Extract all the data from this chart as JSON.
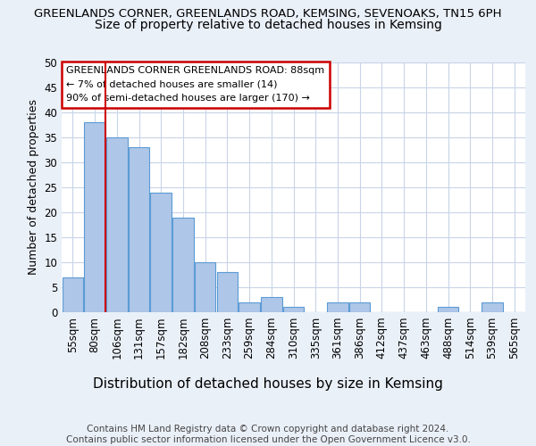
{
  "title_line1": "GREENLANDS CORNER, GREENLANDS ROAD, KEMSING, SEVENOAKS, TN15 6PH",
  "title_line2": "Size of property relative to detached houses in Kemsing",
  "xlabel": "Distribution of detached houses by size in Kemsing",
  "ylabel": "Number of detached properties",
  "categories": [
    "55sqm",
    "80sqm",
    "106sqm",
    "131sqm",
    "157sqm",
    "182sqm",
    "208sqm",
    "233sqm",
    "259sqm",
    "284sqm",
    "310sqm",
    "335sqm",
    "361sqm",
    "386sqm",
    "412sqm",
    "437sqm",
    "463sqm",
    "488sqm",
    "514sqm",
    "539sqm",
    "565sqm"
  ],
  "values": [
    7,
    38,
    35,
    33,
    24,
    19,
    10,
    8,
    2,
    3,
    1,
    0,
    2,
    2,
    0,
    0,
    0,
    1,
    0,
    2,
    0
  ],
  "bar_color": "#aec6e8",
  "bar_edge_color": "#5b9bd5",
  "vline_pos": 1.5,
  "vline_color": "#cc0000",
  "annotation_text": "GREENLANDS CORNER GREENLANDS ROAD: 88sqm\n← 7% of detached houses are smaller (14)\n90% of semi-detached houses are larger (170) →",
  "annotation_box_color": "#ffffff",
  "annotation_box_edge_color": "#cc0000",
  "ylim": [
    0,
    50
  ],
  "yticks": [
    0,
    5,
    10,
    15,
    20,
    25,
    30,
    35,
    40,
    45,
    50
  ],
  "footer_text": "Contains HM Land Registry data © Crown copyright and database right 2024.\nContains public sector information licensed under the Open Government Licence v3.0.",
  "background_color": "#eaf0f8",
  "plot_background_color": "#ffffff",
  "grid_color": "#c8d4e8",
  "title_fontsize": 9.5,
  "subtitle_fontsize": 10,
  "ylabel_fontsize": 9,
  "xlabel_fontsize": 11,
  "tick_fontsize": 8.5,
  "annot_fontsize": 8,
  "footer_fontsize": 7.5
}
